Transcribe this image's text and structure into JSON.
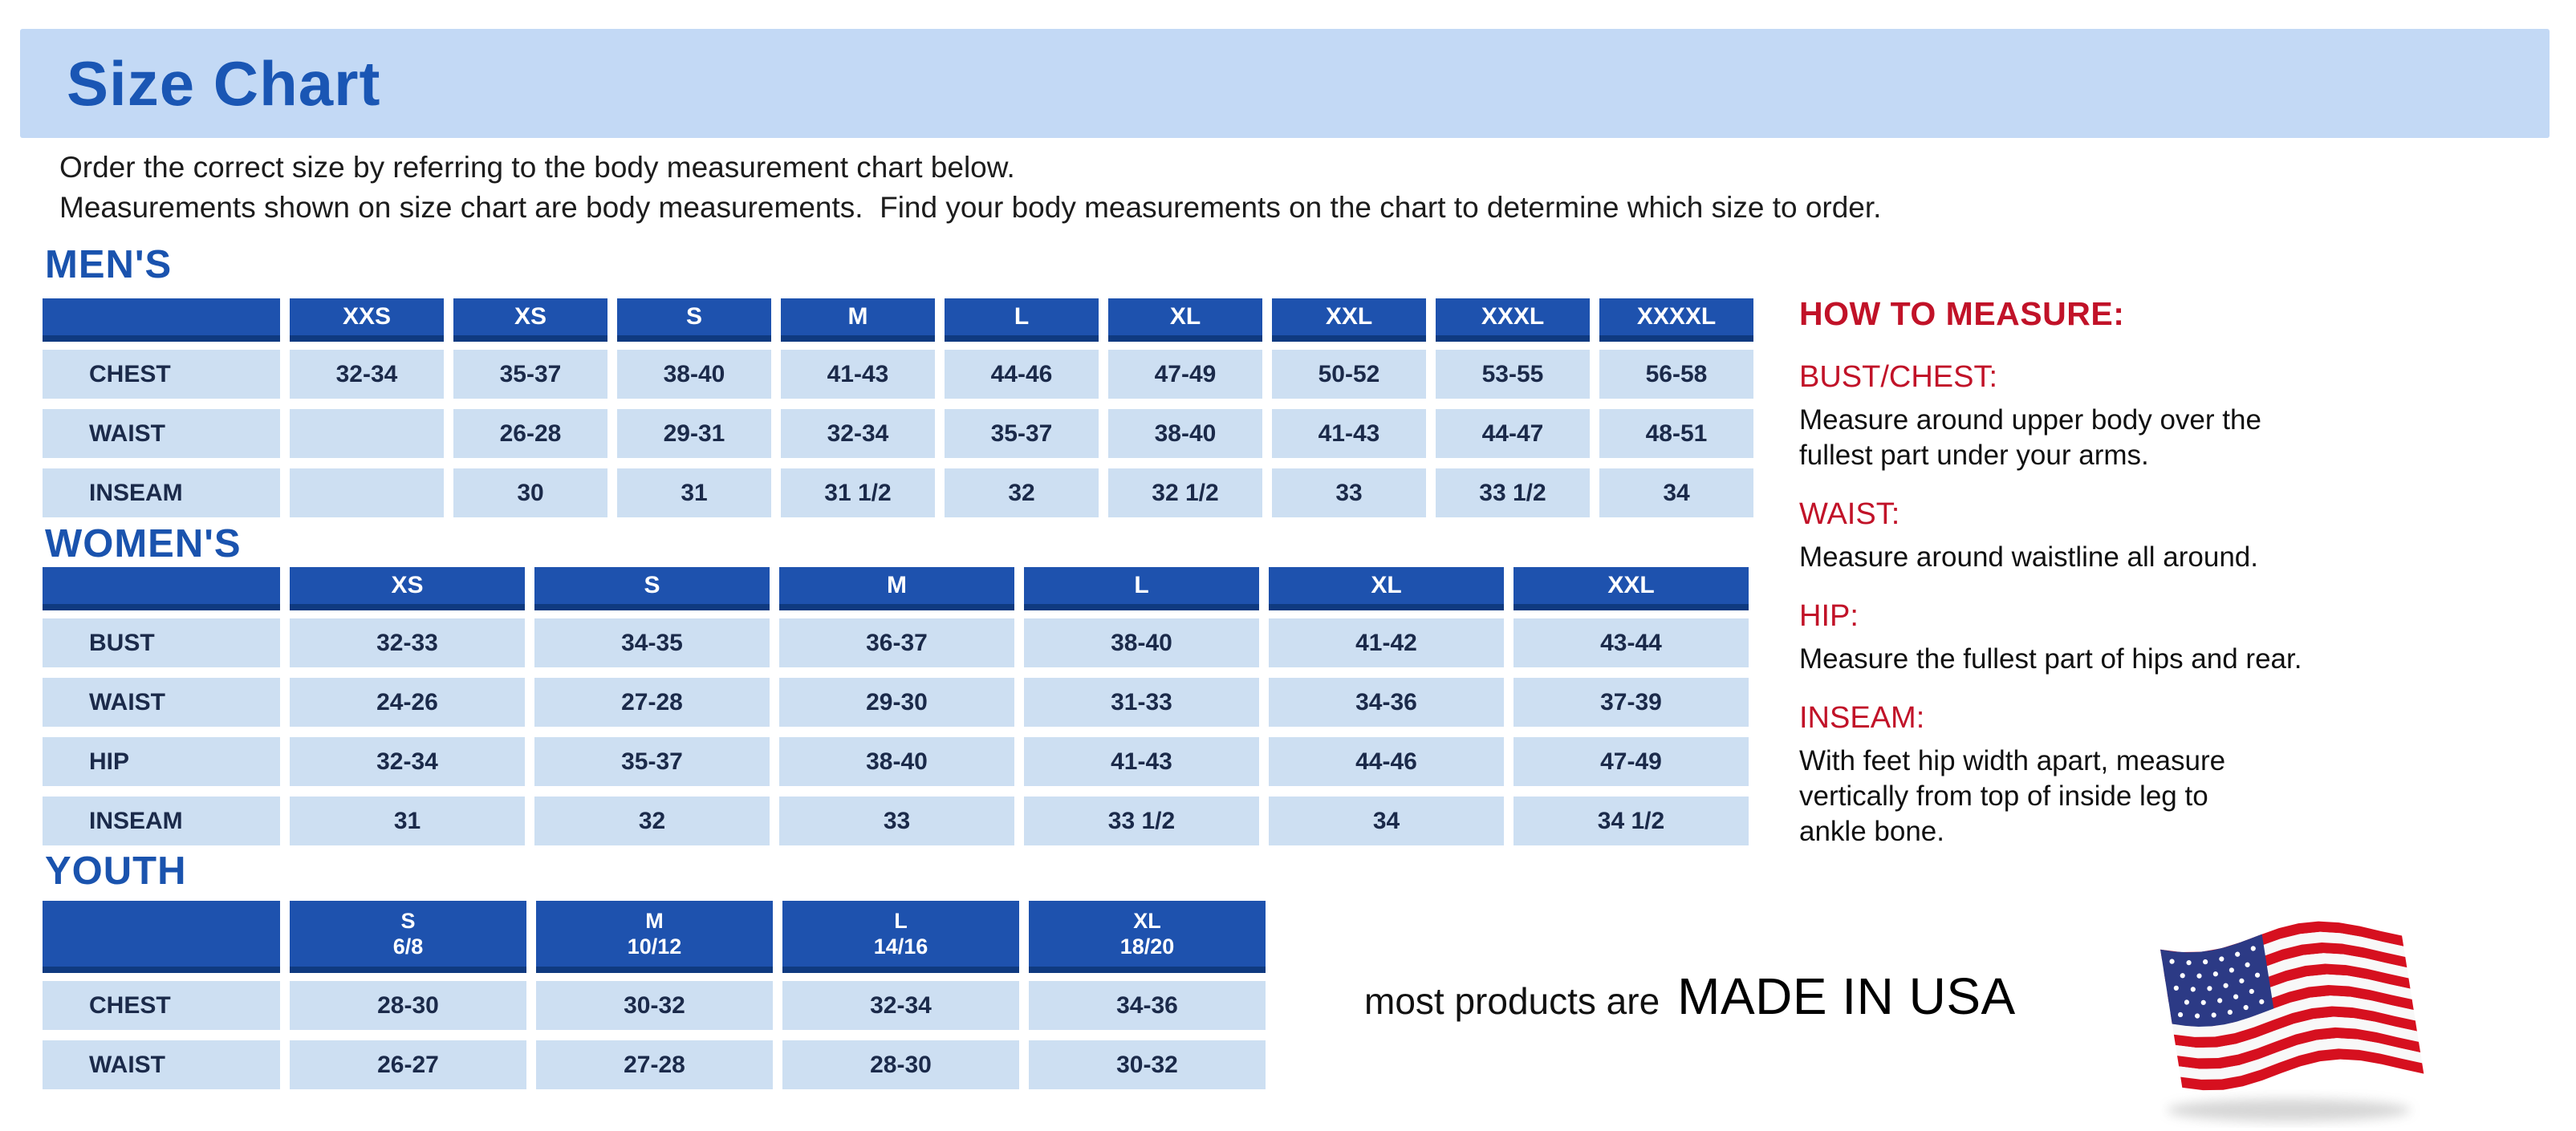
{
  "banner": {
    "title": "Size Chart"
  },
  "intro": {
    "line1": "Order the correct size by referring to the body measurement chart below.",
    "line2": "Measurements shown on size chart are body measurements.  Find your body measurements on the chart to determine which size to order."
  },
  "tables": [
    {
      "id": "mens",
      "heading": "MEN'S",
      "columns": [
        "XXS",
        "XS",
        "S",
        "M",
        "L",
        "XL",
        "XXL",
        "XXXL",
        "XXXXL"
      ],
      "rows": [
        {
          "label": "CHEST",
          "values": [
            "32-34",
            "35-37",
            "38-40",
            "41-43",
            "44-46",
            "47-49",
            "50-52",
            "53-55",
            "56-58"
          ]
        },
        {
          "label": "WAIST",
          "values": [
            "",
            "26-28",
            "29-31",
            "32-34",
            "35-37",
            "38-40",
            "41-43",
            "44-47",
            "48-51"
          ]
        },
        {
          "label": "INSEAM",
          "values": [
            "",
            "30",
            "31",
            "31 1/2",
            "32",
            "32 1/2",
            "33",
            "33 1/2",
            "34"
          ]
        }
      ]
    },
    {
      "id": "womens",
      "heading": "WOMEN'S",
      "columns": [
        "XS",
        "S",
        "M",
        "L",
        "XL",
        "XXL"
      ],
      "rows": [
        {
          "label": "BUST",
          "values": [
            "32-33",
            "34-35",
            "36-37",
            "38-40",
            "41-42",
            "43-44"
          ]
        },
        {
          "label": "WAIST",
          "values": [
            "24-26",
            "27-28",
            "29-30",
            "31-33",
            "34-36",
            "37-39"
          ]
        },
        {
          "label": "HIP",
          "values": [
            "32-34",
            "35-37",
            "38-40",
            "41-43",
            "44-46",
            "47-49"
          ]
        },
        {
          "label": "INSEAM",
          "values": [
            "31",
            "32",
            "33",
            "33 1/2",
            "34",
            "34 1/2"
          ]
        }
      ]
    },
    {
      "id": "youth",
      "heading": "YOUTH",
      "columns": [
        {
          "label": "S",
          "sub": "6/8"
        },
        {
          "label": "M",
          "sub": "10/12"
        },
        {
          "label": "L",
          "sub": "14/16"
        },
        {
          "label": "XL",
          "sub": "18/20"
        }
      ],
      "rows": [
        {
          "label": "CHEST",
          "values": [
            "28-30",
            "30-32",
            "32-34",
            "34-36"
          ]
        },
        {
          "label": "WAIST",
          "values": [
            "26-27",
            "27-28",
            "28-30",
            "30-32"
          ]
        }
      ]
    }
  ],
  "how_to_measure": {
    "title": "HOW TO MEASURE:",
    "sections": [
      {
        "heading": "BUST/CHEST:",
        "text": "Measure around upper body over the\nfullest part under your arms."
      },
      {
        "heading": "WAIST:",
        "text": "Measure around waistline all around."
      },
      {
        "heading": "HIP:",
        "text": "Measure the fullest part of hips and rear."
      },
      {
        "heading": "INSEAM:",
        "text": "With feet hip width apart, measure\nvertically from top of inside leg to\nankle bone."
      }
    ]
  },
  "footer": {
    "prefix": "most products are",
    "emphasis": "MADE IN USA",
    "flag_icon": "us-flag-icon"
  },
  "colors": {
    "banner_bg": "#c3d9f5",
    "title_blue": "#1a56b4",
    "heading_blue": "#1a53ae",
    "header_cell_blue": "#1e52ae",
    "header_cell_band": "#0f3a80",
    "cell_blue": "#cddff2",
    "cell_text": "#1b2a4a",
    "red": "#c11228",
    "flag_red": "#d6101f",
    "flag_white": "#f8f8f8",
    "flag_navy": "#2c3a85"
  }
}
